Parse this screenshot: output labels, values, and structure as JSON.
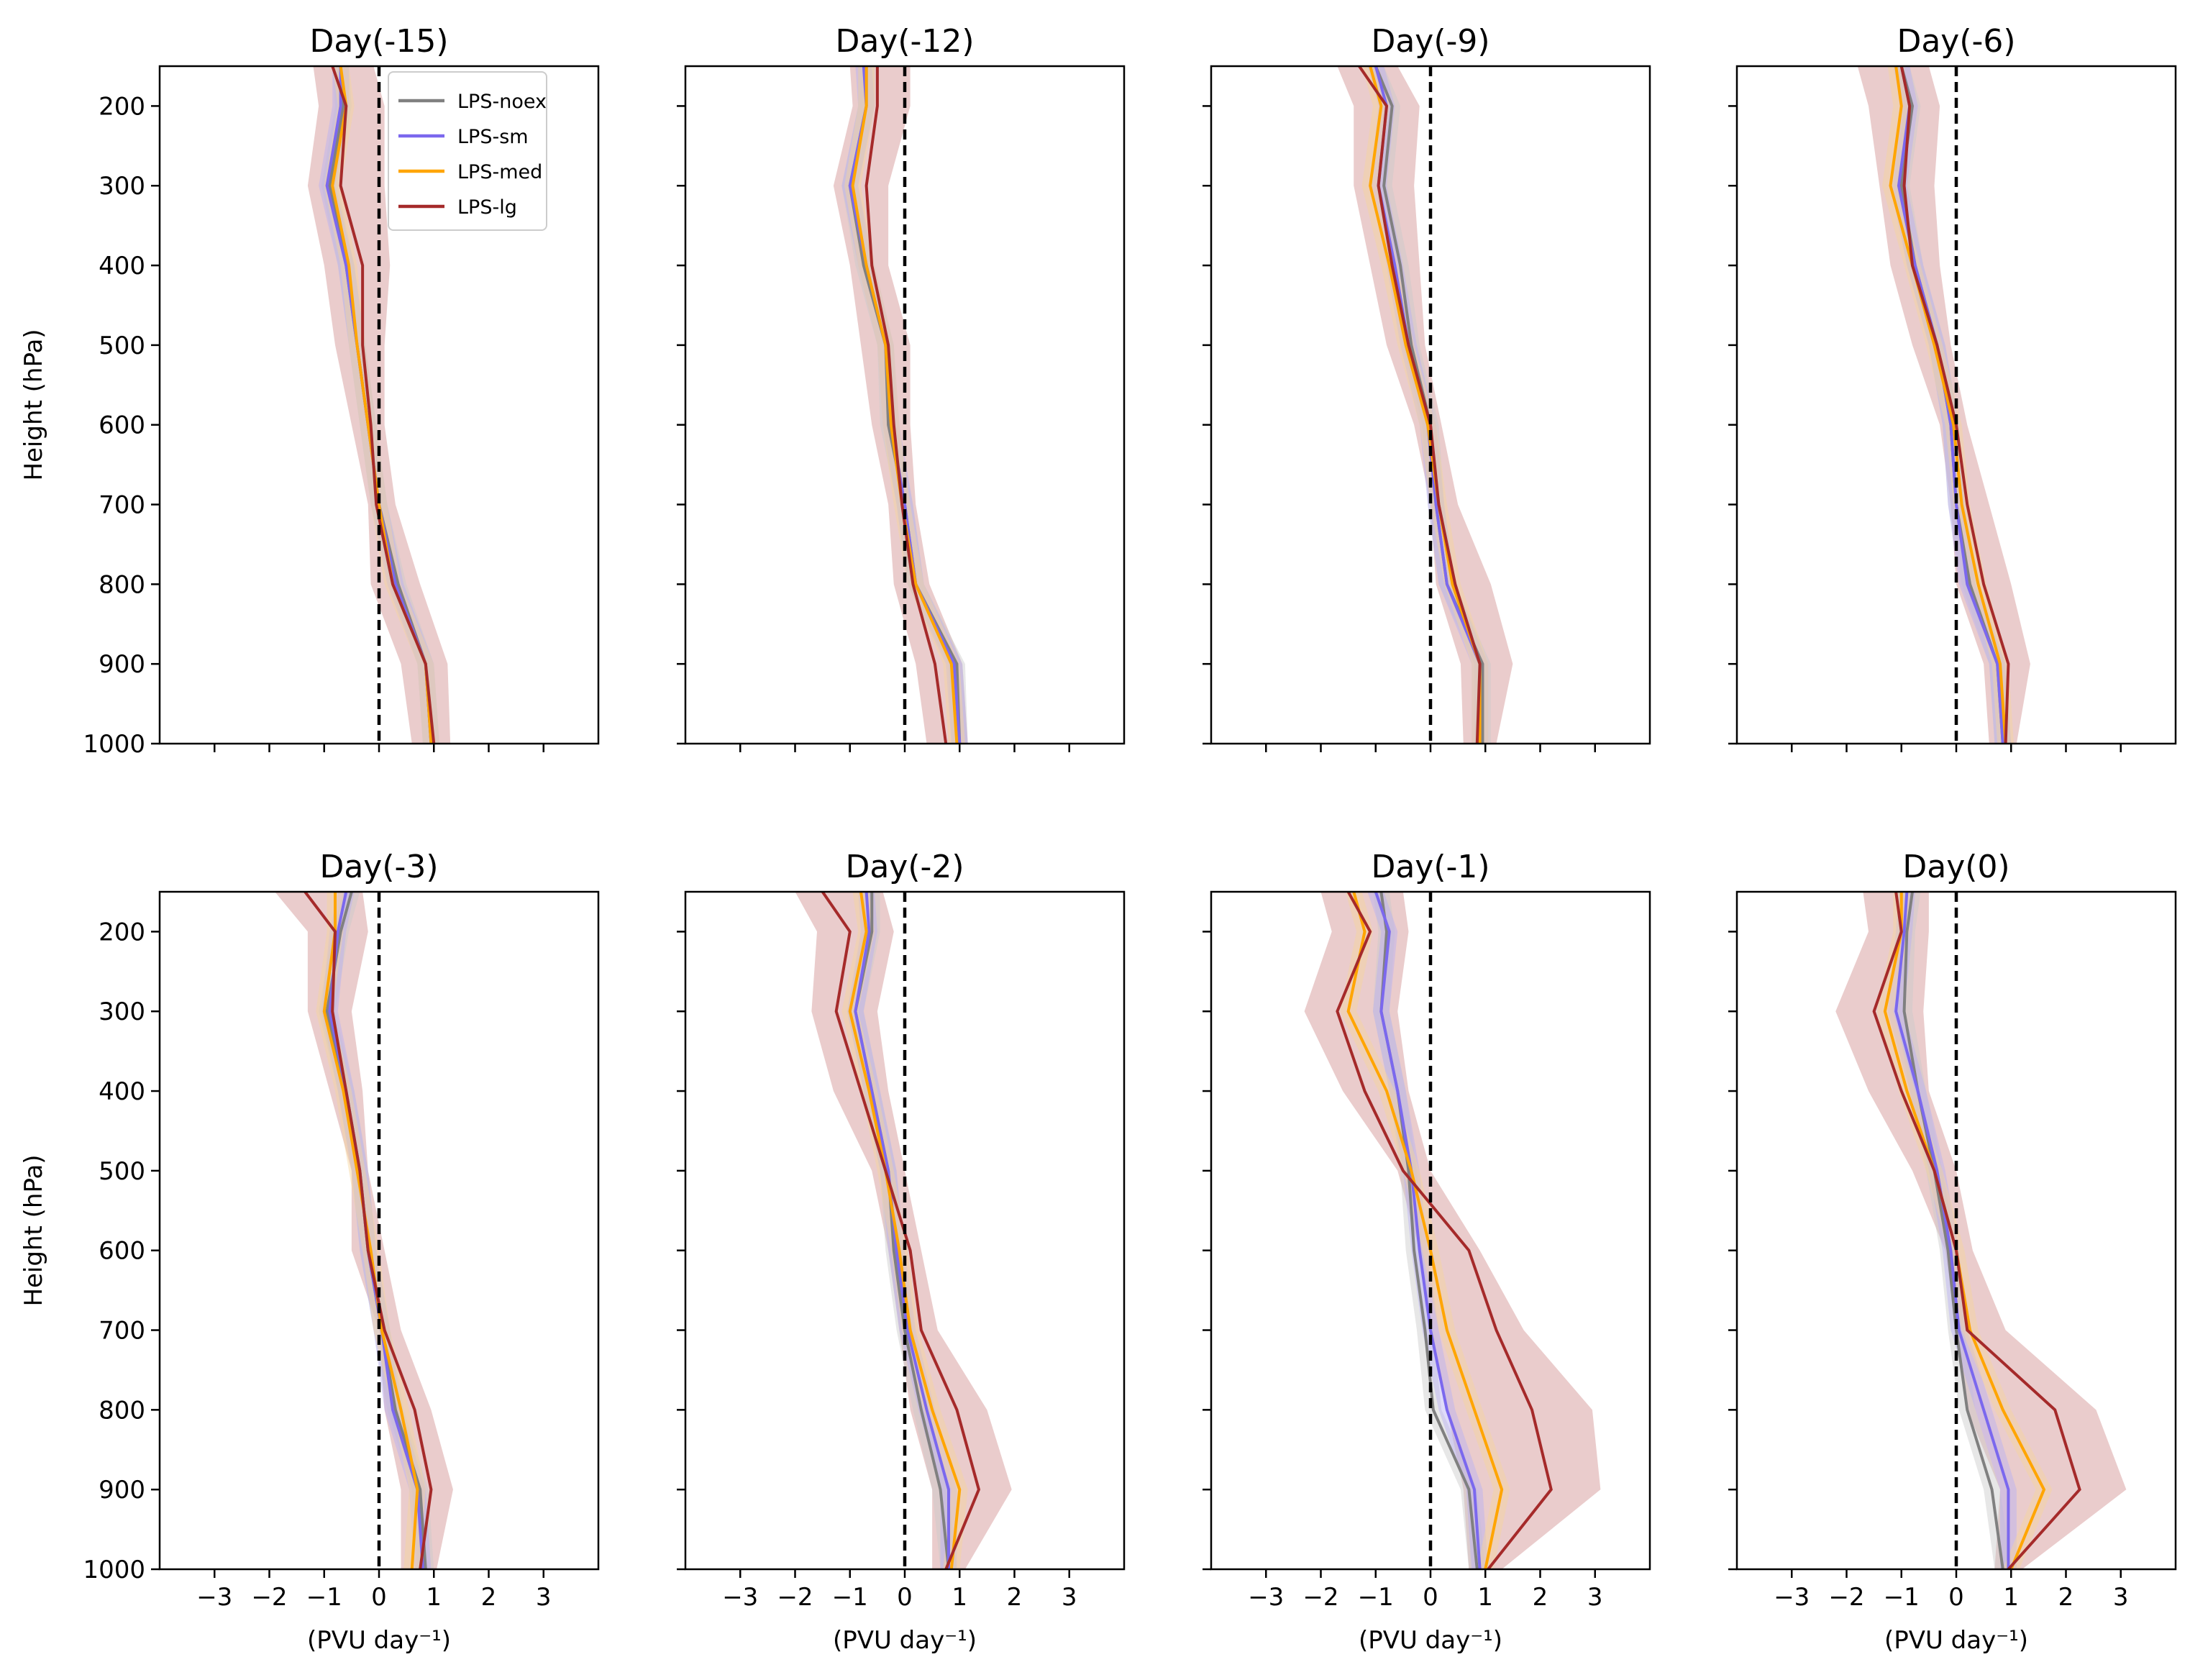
{
  "chart_data": {
    "type": "line",
    "layout": "2x4 small multiples, shared y-axis",
    "ylabel": "Height (hPa)",
    "xlabel": "(PVU day⁻¹)",
    "ylim": [
      1000,
      150
    ],
    "xlim": [
      -4,
      4
    ],
    "yticks": [
      200,
      300,
      400,
      500,
      600,
      700,
      800,
      900,
      1000
    ],
    "xticks": [
      -3,
      -2,
      -1,
      0,
      1,
      2,
      3
    ],
    "xtick_labels": [
      "−3",
      "−2",
      "−1",
      "0",
      "1",
      "2",
      "3"
    ],
    "levels": [
      150,
      200,
      300,
      400,
      500,
      600,
      700,
      800,
      900,
      1000
    ],
    "reference_line": {
      "x": 0,
      "style": "dashed",
      "color": "#000000"
    },
    "legend": {
      "location": "top-right of first panel",
      "entries": [
        "LPS-noex",
        "LPS-sm",
        "LPS-med",
        "LPS-lg"
      ]
    },
    "series_styles": [
      {
        "name": "LPS-noex",
        "color": "#808080",
        "shade": "#c9c9c9"
      },
      {
        "name": "LPS-sm",
        "color": "#7b68ee",
        "shade": "#b9b0f4"
      },
      {
        "name": "LPS-med",
        "color": "#ffa500",
        "shade": "#f6d49c"
      },
      {
        "name": "LPS-lg",
        "color": "#a52a2a",
        "shade": "#d9a3a3"
      }
    ],
    "panels": [
      {
        "title": "Day(-15)",
        "series": {
          "LPS-noex": [
            -0.7,
            -0.65,
            -0.9,
            -0.6,
            -0.4,
            -0.2,
            0.0,
            0.35,
            0.85,
            0.95
          ],
          "LPS-sm": [
            -0.7,
            -0.7,
            -0.95,
            -0.6,
            -0.4,
            -0.2,
            0.0,
            0.3,
            0.85,
            0.95
          ],
          "LPS-med": [
            -0.7,
            -0.6,
            -0.85,
            -0.55,
            -0.4,
            -0.2,
            0.0,
            0.25,
            0.85,
            0.95
          ],
          "LPS-lg": [
            -0.85,
            -0.6,
            -0.7,
            -0.3,
            -0.3,
            -0.15,
            -0.05,
            0.25,
            0.85,
            1.0
          ]
        },
        "band": {
          "lower": [
            -1.2,
            -1.1,
            -1.3,
            -1.0,
            -0.8,
            -0.5,
            -0.2,
            -0.15,
            0.4,
            0.6
          ],
          "upper": [
            -0.1,
            0.1,
            0.1,
            0.2,
            0.1,
            0.1,
            0.3,
            0.75,
            1.25,
            1.3
          ]
        }
      },
      {
        "title": "Day(-12)",
        "series": {
          "LPS-noex": [
            -0.7,
            -0.7,
            -1.0,
            -0.75,
            -0.35,
            -0.3,
            0.0,
            0.2,
            0.95,
            1.0
          ],
          "LPS-sm": [
            -0.75,
            -0.7,
            -1.0,
            -0.7,
            -0.35,
            -0.25,
            0.0,
            0.2,
            0.9,
            1.0
          ],
          "LPS-med": [
            -0.7,
            -0.7,
            -0.95,
            -0.7,
            -0.35,
            -0.25,
            -0.05,
            0.2,
            0.85,
            0.95
          ],
          "LPS-lg": [
            -0.5,
            -0.5,
            -0.7,
            -0.6,
            -0.3,
            -0.2,
            -0.05,
            0.15,
            0.55,
            0.75
          ]
        },
        "band": {
          "lower": [
            -1.0,
            -0.95,
            -1.3,
            -1.0,
            -0.8,
            -0.6,
            -0.3,
            -0.2,
            0.2,
            0.4
          ],
          "upper": [
            0.1,
            0.1,
            -0.3,
            -0.3,
            0.1,
            0.1,
            0.2,
            0.45,
            1.05,
            1.15
          ]
        }
      },
      {
        "title": "Day(-9)",
        "series": {
          "LPS-noex": [
            -1.0,
            -0.7,
            -0.85,
            -0.55,
            -0.35,
            0.0,
            0.1,
            0.3,
            0.95,
            0.95
          ],
          "LPS-sm": [
            -1.0,
            -0.8,
            -0.95,
            -0.65,
            -0.4,
            -0.05,
            0.1,
            0.3,
            0.9,
            0.9
          ],
          "LPS-med": [
            -1.1,
            -0.9,
            -1.1,
            -0.75,
            -0.45,
            -0.05,
            0.15,
            0.4,
            0.9,
            0.9
          ],
          "LPS-lg": [
            -1.3,
            -0.8,
            -0.95,
            -0.7,
            -0.4,
            0.0,
            0.15,
            0.45,
            0.9,
            0.85
          ]
        },
        "band": {
          "lower": [
            -1.7,
            -1.4,
            -1.4,
            -1.1,
            -0.8,
            -0.3,
            0.0,
            0.1,
            0.55,
            0.6
          ],
          "upper": [
            -0.6,
            -0.2,
            -0.3,
            -0.2,
            -0.1,
            0.2,
            0.5,
            1.1,
            1.5,
            1.2
          ]
        }
      },
      {
        "title": "Day(-6)",
        "series": {
          "LPS-noex": [
            -1.0,
            -0.8,
            -1.0,
            -0.75,
            -0.35,
            -0.1,
            0.0,
            0.25,
            0.75,
            0.85
          ],
          "LPS-sm": [
            -1.0,
            -0.85,
            -1.05,
            -0.75,
            -0.35,
            -0.1,
            0.0,
            0.2,
            0.75,
            0.85
          ],
          "LPS-med": [
            -1.1,
            -1.0,
            -1.2,
            -0.8,
            -0.4,
            -0.05,
            0.1,
            0.4,
            0.8,
            0.9
          ],
          "LPS-lg": [
            -1.0,
            -0.85,
            -0.95,
            -0.8,
            -0.35,
            0.0,
            0.2,
            0.5,
            0.95,
            0.9
          ]
        },
        "band": {
          "lower": [
            -1.8,
            -1.6,
            -1.4,
            -1.2,
            -0.8,
            -0.3,
            -0.1,
            0.0,
            0.5,
            0.6
          ],
          "upper": [
            -0.5,
            -0.3,
            -0.4,
            -0.3,
            -0.1,
            0.2,
            0.6,
            1.0,
            1.35,
            1.1
          ]
        }
      },
      {
        "title": "Day(-3)",
        "series": {
          "LPS-noex": [
            -0.5,
            -0.7,
            -0.95,
            -0.6,
            -0.35,
            -0.2,
            0.05,
            0.3,
            0.75,
            0.85
          ],
          "LPS-sm": [
            -0.6,
            -0.75,
            -0.9,
            -0.6,
            -0.35,
            -0.2,
            0.05,
            0.25,
            0.7,
            0.8
          ],
          "LPS-med": [
            -0.8,
            -0.8,
            -1.0,
            -0.65,
            -0.4,
            -0.15,
            0.05,
            0.4,
            0.7,
            0.6
          ],
          "LPS-lg": [
            -1.35,
            -0.8,
            -0.85,
            -0.6,
            -0.35,
            -0.2,
            0.1,
            0.65,
            0.95,
            0.75
          ]
        },
        "band": {
          "lower": [
            -1.9,
            -1.3,
            -1.3,
            -0.9,
            -0.5,
            -0.5,
            0.0,
            0.1,
            0.4,
            0.4
          ],
          "upper": [
            -0.3,
            -0.2,
            -0.5,
            -0.3,
            -0.2,
            0.1,
            0.4,
            0.95,
            1.35,
            1.05
          ]
        }
      },
      {
        "title": "Day(-2)",
        "series": {
          "LPS-noex": [
            -0.6,
            -0.6,
            -0.9,
            -0.6,
            -0.3,
            -0.2,
            0.0,
            0.3,
            0.65,
            0.8
          ],
          "LPS-sm": [
            -0.7,
            -0.65,
            -0.9,
            -0.6,
            -0.3,
            -0.15,
            0.05,
            0.4,
            0.8,
            0.8
          ],
          "LPS-med": [
            -0.8,
            -0.7,
            -1.0,
            -0.65,
            -0.35,
            -0.1,
            0.1,
            0.5,
            1.0,
            0.85
          ],
          "LPS-lg": [
            -1.5,
            -1.0,
            -1.25,
            -0.8,
            -0.35,
            0.1,
            0.3,
            0.95,
            1.35,
            0.75
          ]
        },
        "band": {
          "lower": [
            -2.0,
            -1.6,
            -1.7,
            -1.3,
            -0.6,
            -0.3,
            -0.1,
            0.1,
            0.5,
            0.5
          ],
          "upper": [
            -0.4,
            -0.2,
            -0.5,
            -0.3,
            0.0,
            0.3,
            0.6,
            1.5,
            1.95,
            1.1
          ]
        }
      },
      {
        "title": "Day(-1)",
        "series": {
          "LPS-noex": [
            -0.9,
            -0.8,
            -0.9,
            -0.6,
            -0.4,
            -0.3,
            -0.1,
            0.05,
            0.7,
            0.85
          ],
          "LPS-sm": [
            -1.0,
            -0.75,
            -0.9,
            -0.6,
            -0.35,
            -0.2,
            0.0,
            0.3,
            0.8,
            0.9
          ],
          "LPS-med": [
            -1.4,
            -1.2,
            -1.5,
            -0.8,
            -0.35,
            0.0,
            0.3,
            0.8,
            1.3,
            1.0
          ],
          "LPS-lg": [
            -1.5,
            -1.1,
            -1.7,
            -1.2,
            -0.5,
            0.7,
            1.2,
            1.85,
            2.2,
            1.05
          ]
        },
        "band": {
          "lower": [
            -2.0,
            -1.8,
            -2.3,
            -1.6,
            -0.6,
            -0.2,
            0.0,
            0.3,
            0.6,
            0.7
          ],
          "upper": [
            -0.5,
            -0.4,
            -0.6,
            -0.4,
            0.0,
            0.9,
            1.7,
            2.95,
            3.1,
            1.3
          ]
        }
      },
      {
        "title": "Day(0)",
        "series": {
          "LPS-noex": [
            -0.8,
            -0.9,
            -0.95,
            -0.7,
            -0.4,
            -0.15,
            0.0,
            0.2,
            0.65,
            0.85
          ],
          "LPS-sm": [
            -0.9,
            -0.95,
            -1.1,
            -0.7,
            -0.35,
            -0.1,
            0.05,
            0.5,
            0.95,
            0.95
          ],
          "LPS-med": [
            -1.0,
            -1.0,
            -1.3,
            -0.9,
            -0.4,
            0.0,
            0.25,
            0.85,
            1.6,
            1.0
          ],
          "LPS-lg": [
            -1.1,
            -1.0,
            -1.5,
            -1.0,
            -0.4,
            0.0,
            0.2,
            1.8,
            2.25,
            0.95
          ]
        },
        "band": {
          "lower": [
            -1.7,
            -1.6,
            -2.2,
            -1.6,
            -0.8,
            -0.2,
            0.0,
            0.2,
            0.8,
            0.7
          ],
          "upper": [
            -0.5,
            -0.5,
            -0.6,
            -0.5,
            0.0,
            0.3,
            0.9,
            2.55,
            3.1,
            1.2
          ]
        }
      }
    ]
  }
}
